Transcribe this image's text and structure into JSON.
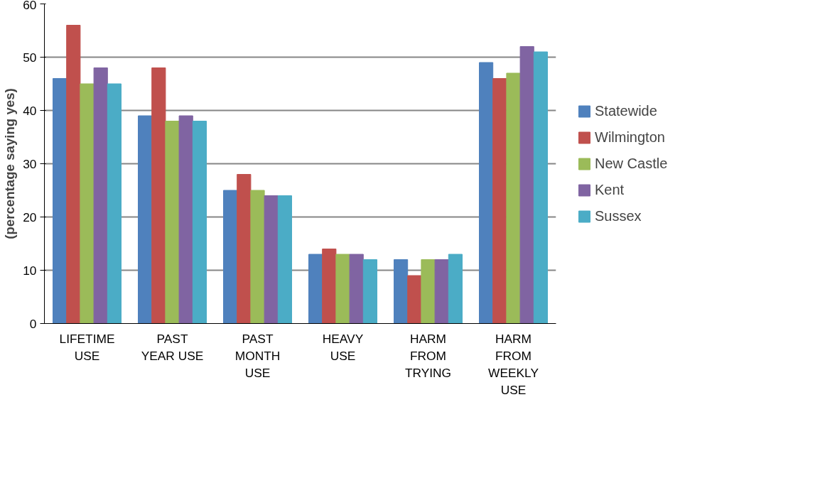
{
  "chart_data": {
    "type": "bar",
    "ylabel": "(percentage saying yes)",
    "categories": [
      "LIFETIME USE",
      "PAST YEAR USE",
      "PAST MONTH USE",
      "HEAVY USE",
      "HARM FROM TRYING",
      "HARM FROM WEEKLY USE"
    ],
    "series": [
      {
        "name": "Statewide",
        "color": "#4f81bd",
        "values": [
          46,
          39,
          25,
          13,
          12,
          49
        ]
      },
      {
        "name": "Wilmington",
        "color": "#c0504d",
        "values": [
          56,
          48,
          28,
          14,
          9,
          46
        ]
      },
      {
        "name": "New Castle",
        "color": "#9bbb59",
        "values": [
          45,
          38,
          25,
          13,
          12,
          47
        ]
      },
      {
        "name": "Kent",
        "color": "#8064a2",
        "values": [
          48,
          39,
          24,
          13,
          12,
          52
        ]
      },
      {
        "name": "Sussex",
        "color": "#4bacc6",
        "values": [
          45,
          38,
          24,
          12,
          13,
          51
        ]
      }
    ],
    "ylim": [
      0,
      60
    ],
    "yticks": [
      0,
      10,
      20,
      30,
      40,
      50,
      60
    ],
    "grid": "y",
    "legend": "right"
  }
}
